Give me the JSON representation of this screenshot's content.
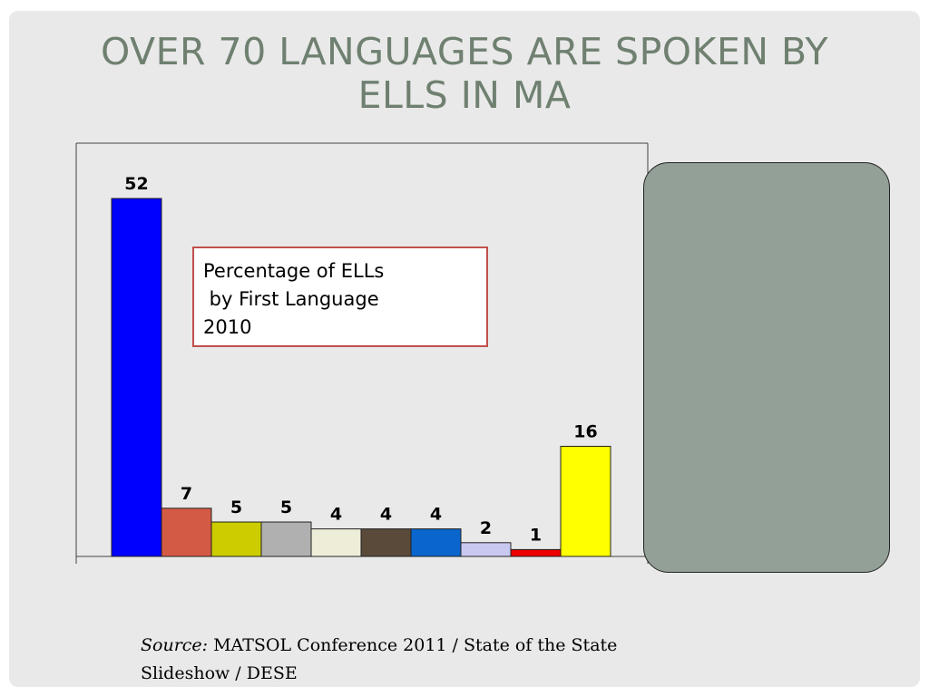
{
  "slide": {
    "title_lines": [
      "OVER 70 LANGUAGES ARE SPOKEN BY",
      "ELLS IN MA"
    ],
    "caption_lines": [
      "Percentage of ELLs",
      " by First Language",
      "2010"
    ],
    "source_label": "Source:",
    "source_text": " MATSOL Conference 2011 / State of the State Slideshow / DESE"
  },
  "chart_data": {
    "type": "bar",
    "title": "Percentage of ELLs by First Language 2010",
    "categories": [
      "",
      "",
      "",
      "",
      "",
      "",
      "",
      "",
      "",
      ""
    ],
    "values": [
      52,
      7,
      5,
      5,
      4,
      4,
      4,
      2,
      1,
      16
    ],
    "colors": [
      "#0000ff",
      "#d35a45",
      "#cccc00",
      "#b0b0b0",
      "#eeeed8",
      "#5a4a3a",
      "#0a66cc",
      "#c8c8f0",
      "#ee0000",
      "#ffff00"
    ],
    "data_labels": [
      "52",
      "7",
      "5",
      "5",
      "4",
      "4",
      "4",
      "2",
      "1",
      "16"
    ],
    "ylim": [
      0,
      58
    ],
    "grid": false,
    "legend": "none"
  },
  "panel": {
    "color": "#93a097"
  }
}
